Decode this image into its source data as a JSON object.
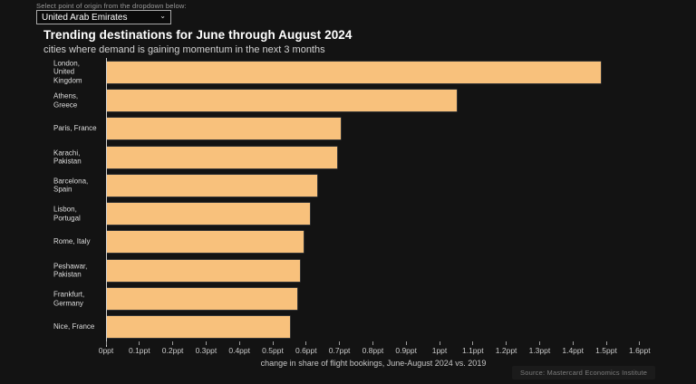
{
  "page": {
    "select_label": "Select point of origin from the dropdown below:",
    "dropdown_value": "United Arab Emirates",
    "source": "Source: Mastercard Economics Institute"
  },
  "chart_data": {
    "type": "bar",
    "orientation": "horizontal",
    "title": "Trending destinations for June through August 2024",
    "subtitle": "cities where demand is gaining momentum in the next 3 months",
    "categories": [
      "London, United Kingdom",
      "Athens, Greece",
      "Paris, France",
      "Karachi, Pakistan",
      "Barcelona, Spain",
      "Lisbon, Portugal",
      "Rome, Italy",
      "Peshawar, Pakistan",
      "Frankfurt, Germany",
      "Nice, France"
    ],
    "values": [
      1.48,
      1.05,
      0.7,
      0.69,
      0.63,
      0.61,
      0.59,
      0.58,
      0.57,
      0.55
    ],
    "unit": "ppt",
    "xlabel": "change in share of flight bookings, June-August 2024 vs. 2019",
    "xlim": [
      0,
      1.6
    ],
    "x_ticks": [
      "0ppt",
      "0.1ppt",
      "0.2ppt",
      "0.3ppt",
      "0.4ppt",
      "0.5ppt",
      "0.6ppt",
      "0.7ppt",
      "0.8ppt",
      "0.9ppt",
      "1ppt",
      "1.1ppt",
      "1.2ppt",
      "1.3ppt",
      "1.4ppt",
      "1.5ppt",
      "1.6ppt"
    ],
    "bar_color": "#f8c17c",
    "background": "#131313",
    "grid": false,
    "legend": false
  }
}
